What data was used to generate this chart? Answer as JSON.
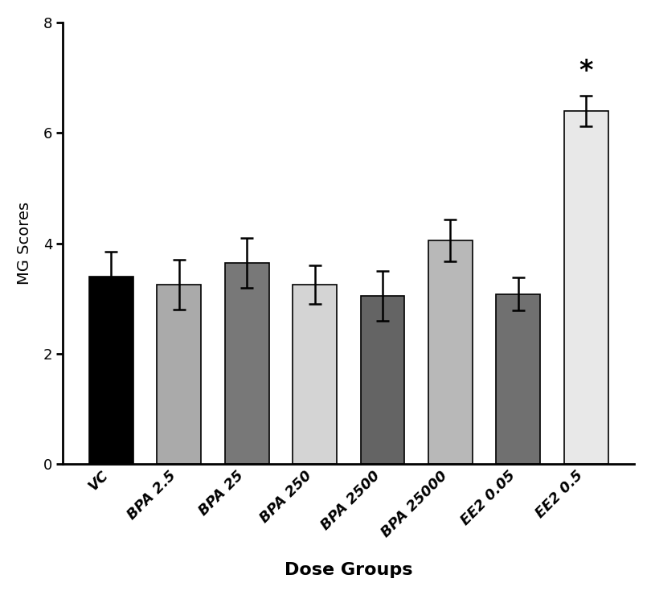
{
  "categories": [
    "VC",
    "BPA 2.5",
    "BPA 25",
    "BPA 250",
    "BPA 2500",
    "BPA 25000",
    "EE2 0.05",
    "EE2 0.5"
  ],
  "values": [
    3.4,
    3.25,
    3.65,
    3.25,
    3.05,
    4.05,
    3.08,
    6.4
  ],
  "errors": [
    0.45,
    0.45,
    0.45,
    0.35,
    0.45,
    0.38,
    0.3,
    0.28
  ],
  "bar_colors": [
    "#000000",
    "#aaaaaa",
    "#787878",
    "#d4d4d4",
    "#646464",
    "#b8b8b8",
    "#707070",
    "#e8e8e8"
  ],
  "bar_edgecolor": "#000000",
  "ylabel": "MG Scores",
  "xlabel": "Dose Groups",
  "ylim": [
    0,
    8
  ],
  "yticks": [
    0,
    2,
    4,
    6,
    8
  ],
  "significance_idx": 7,
  "significance_marker": "*",
  "figsize": [
    8.1,
    7.4
  ],
  "dpi": 100,
  "bar_width": 0.65,
  "tick_label_fontsize": 13,
  "ylabel_fontsize": 14,
  "xlabel_fontsize": 16
}
